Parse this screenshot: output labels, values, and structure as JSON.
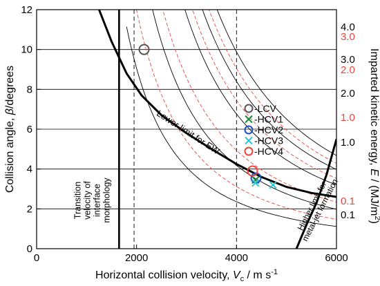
{
  "chart_data": {
    "type": "line",
    "x_axis": {
      "label_main": "Horizontal collision velocity, ",
      "label_symbol": "V",
      "label_subscript": "c",
      "label_unit": " / m s",
      "label_unit_superscript": "-1",
      "range": [
        0,
        6000
      ],
      "ticks": [
        0,
        2000,
        4000,
        6000
      ],
      "tick_labels": [
        "0",
        "2000",
        "4000",
        "6000"
      ]
    },
    "y_axis": {
      "label_main": "Collision angle, ",
      "label_symbol": "β",
      "label_unit": "/degrees",
      "range": [
        0,
        12
      ],
      "ticks": [
        0,
        2,
        4,
        6,
        8,
        10,
        12
      ],
      "tick_labels": [
        "0",
        "2",
        "4",
        "6",
        "8",
        "10",
        "12"
      ]
    },
    "right_axis": {
      "label_main": "Imparted kinetic energy, ",
      "label_symbol": "E",
      "label_unit": " / (MJ/m",
      "label_unit_superscript": "2",
      "label_close": ")"
    },
    "grid": {
      "horizontal": true,
      "horizontal_at": [
        2,
        4,
        6,
        8,
        10
      ]
    },
    "dashed_verticals": [
      1950,
      4000
    ],
    "energy_levels": [
      {
        "label": "4.0",
        "color": "#000000",
        "style": "solid",
        "k": 2.6
      },
      {
        "label": "3.0",
        "color": "#e8463c",
        "style": "dashed",
        "k": 2.38
      },
      {
        "label": "3.0",
        "color": "#000000",
        "style": "solid",
        "k": 2.21
      },
      {
        "label": "2.0",
        "color": "#e8463c",
        "style": "dashed",
        "k": 1.96
      },
      {
        "label": "2.0",
        "color": "#000000",
        "style": "solid",
        "k": 1.78
      },
      {
        "label": "1.0",
        "color": "#e8463c",
        "style": "dashed",
        "k": 1.3
      },
      {
        "label": "1.0",
        "color": "#000000",
        "style": "solid",
        "k": 1.1
      },
      {
        "label": "0.1",
        "color": "#e8463c",
        "style": "dashed",
        "k": 0.82
      },
      {
        "label": "0.1",
        "color": "#000000",
        "style": "solid",
        "k": 0.62
      }
    ],
    "lower_limit_curve": {
      "label": "Lower limit for EW",
      "points": [
        [
          1250,
          12
        ],
        [
          1500,
          10.4
        ],
        [
          1800,
          8.8
        ],
        [
          2100,
          7.7
        ],
        [
          2500,
          6.7
        ],
        [
          3000,
          5.8
        ],
        [
          3500,
          5.0
        ],
        [
          4000,
          4.25
        ],
        [
          4500,
          3.6
        ],
        [
          5000,
          3.1
        ],
        [
          5500,
          2.8
        ],
        [
          6000,
          2.6
        ]
      ]
    },
    "higher_limit_curve": {
      "label_line1": "Higher limit for",
      "label_line2": "metal-jet formation",
      "points": [
        [
          5200,
          0
        ],
        [
          5400,
          1.2
        ],
        [
          5600,
          2.3
        ],
        [
          5800,
          3.7
        ],
        [
          6000,
          5.5
        ]
      ]
    },
    "transition_line": {
      "x": 1650,
      "label_lines": [
        "Transition",
        "velocity of",
        "interface",
        "morphology"
      ]
    },
    "series": [
      {
        "name": "LCV",
        "marker": "circle",
        "color": "#555555",
        "points": [
          [
            2150,
            10.0
          ]
        ]
      },
      {
        "name": "HCV1",
        "marker": "x",
        "color": "#1a8a3a",
        "points": [
          [
            4380,
            3.45
          ]
        ]
      },
      {
        "name": "HCV2",
        "marker": "circle",
        "color": "#1f4fbf",
        "points": [
          [
            4390,
            3.55
          ]
        ]
      },
      {
        "name": "HCV3",
        "marker": "x",
        "color": "#2ec6d0",
        "points": [
          [
            4380,
            3.3
          ],
          [
            4730,
            3.2
          ]
        ]
      },
      {
        "name": "HCV4",
        "marker": "circle",
        "color": "#e8463c",
        "points": [
          [
            4320,
            3.9
          ]
        ]
      }
    ],
    "legend": {
      "placement": "center-right",
      "entries": [
        "-LCV",
        "-HCV1",
        "-HCV2",
        "-HCV3",
        "-HCV4"
      ]
    }
  }
}
